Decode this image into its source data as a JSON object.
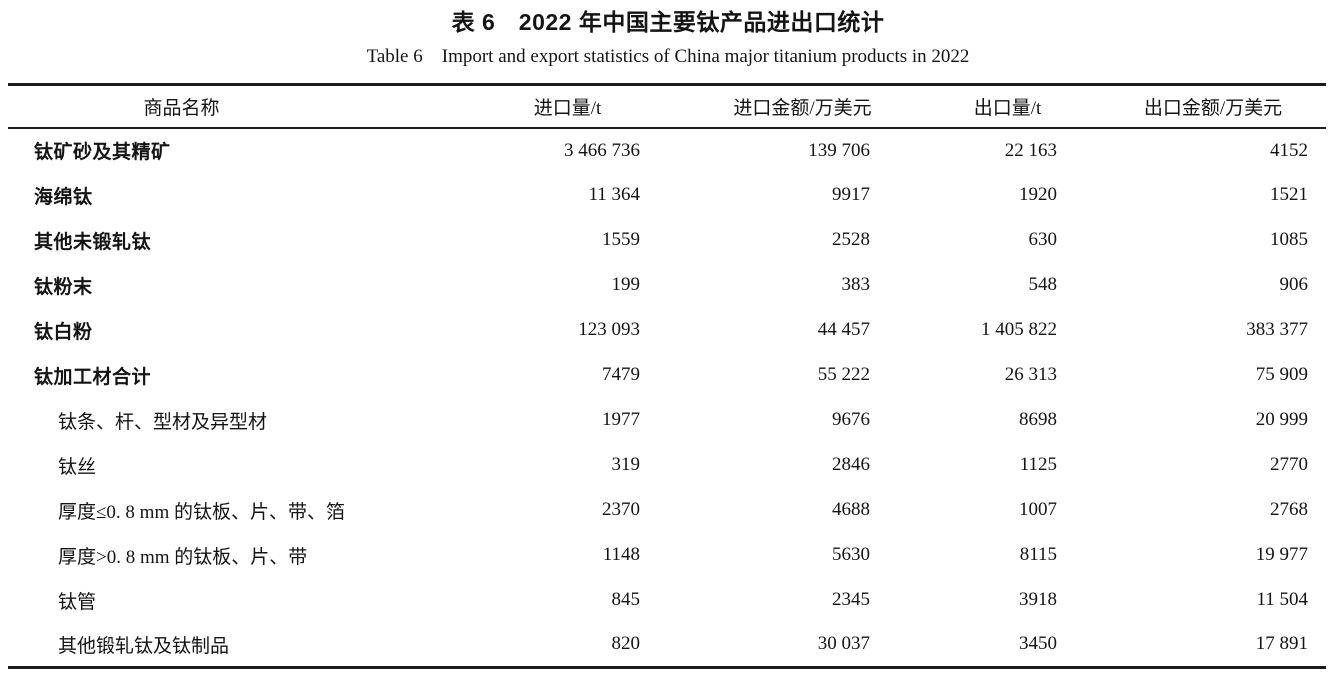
{
  "caption": {
    "zh": "表 6　2022 年中国主要钛产品进出口统计",
    "en": "Table 6 Import and export statistics of China major titanium products in 2022"
  },
  "table": {
    "columns": [
      "商品名称",
      "进口量/t",
      "进口金额/万美元",
      "出口量/t",
      "出口金额/万美元"
    ],
    "rows": [
      {
        "name": "钛矿砂及其精矿",
        "level": "main",
        "values": [
          "3 466 736",
          "139 706",
          "22 163",
          "4152"
        ]
      },
      {
        "name": "海绵钛",
        "level": "main",
        "values": [
          "11 364",
          "9917",
          "1920",
          "1521"
        ]
      },
      {
        "name": "其他未锻轧钛",
        "level": "main",
        "values": [
          "1559",
          "2528",
          "630",
          "1085"
        ]
      },
      {
        "name": "钛粉末",
        "level": "main",
        "values": [
          "199",
          "383",
          "548",
          "906"
        ]
      },
      {
        "name": "钛白粉",
        "level": "main",
        "values": [
          "123 093",
          "44 457",
          "1 405 822",
          "383 377"
        ]
      },
      {
        "name": "钛加工材合计",
        "level": "main",
        "values": [
          "7479",
          "55 222",
          "26 313",
          "75 909"
        ]
      },
      {
        "name": "钛条、杆、型材及异型材",
        "level": "sub",
        "values": [
          "1977",
          "9676",
          "8698",
          "20 999"
        ]
      },
      {
        "name": "钛丝",
        "level": "sub",
        "values": [
          "319",
          "2846",
          "1125",
          "2770"
        ]
      },
      {
        "name": "厚度≤0. 8 mm 的钛板、片、带、箔",
        "level": "sub",
        "values": [
          "2370",
          "4688",
          "1007",
          "2768"
        ]
      },
      {
        "name": "厚度>0. 8 mm 的钛板、片、带",
        "level": "sub",
        "values": [
          "1148",
          "5630",
          "8115",
          "19 977"
        ]
      },
      {
        "name": "钛管",
        "level": "sub",
        "values": [
          "845",
          "2345",
          "3918",
          "11 504"
        ]
      },
      {
        "name": "其他锻轧钛及钛制品",
        "level": "sub",
        "values": [
          "820",
          "30 037",
          "3450",
          "17 891"
        ]
      }
    ]
  }
}
